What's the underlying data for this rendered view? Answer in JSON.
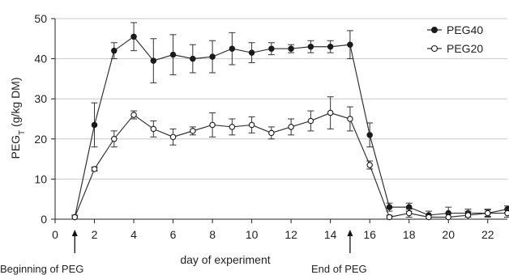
{
  "chart_data": {
    "type": "line",
    "xlabel": "day of experiment",
    "ylabel_main": "PEG",
    "ylabel_sub": "T",
    "ylabel_rest": " (g/kg DM)",
    "xlim": [
      0,
      23
    ],
    "ylim": [
      0,
      50
    ],
    "xticks": [
      "0",
      "2",
      "4",
      "6",
      "8",
      "10",
      "12",
      "14",
      "16",
      "18",
      "20",
      "22"
    ],
    "yticks": [
      "0",
      "10",
      "20",
      "30",
      "40",
      "50"
    ],
    "grid": "horizontal",
    "legend_position": "top-right",
    "series": [
      {
        "name": "PEG40",
        "marker": "filled-circle",
        "points": [
          {
            "x": 1,
            "y": 0.5,
            "err": 0.5
          },
          {
            "x": 2,
            "y": 23.5,
            "err": 5.5
          },
          {
            "x": 3,
            "y": 42,
            "err": 2
          },
          {
            "x": 4,
            "y": 45.5,
            "err": 3.5
          },
          {
            "x": 5,
            "y": 39.5,
            "err": 5.5
          },
          {
            "x": 6,
            "y": 41,
            "err": 5
          },
          {
            "x": 7,
            "y": 40,
            "err": 3.5
          },
          {
            "x": 8,
            "y": 40.5,
            "err": 4
          },
          {
            "x": 9,
            "y": 42.5,
            "err": 4
          },
          {
            "x": 10,
            "y": 41.5,
            "err": 2.5
          },
          {
            "x": 11,
            "y": 42.5,
            "err": 1.5
          },
          {
            "x": 12,
            "y": 42.5,
            "err": 1
          },
          {
            "x": 13,
            "y": 43,
            "err": 1.5
          },
          {
            "x": 14,
            "y": 43,
            "err": 1.5
          },
          {
            "x": 15,
            "y": 43.5,
            "err": 3.5
          },
          {
            "x": 16,
            "y": 21,
            "err": 3
          },
          {
            "x": 17,
            "y": 3,
            "err": 1
          },
          {
            "x": 18,
            "y": 3,
            "err": 1
          },
          {
            "x": 19,
            "y": 1,
            "err": 1
          },
          {
            "x": 20,
            "y": 1.5,
            "err": 1.5
          },
          {
            "x": 21,
            "y": 1.5,
            "err": 1
          },
          {
            "x": 22,
            "y": 1.5,
            "err": 0.8
          },
          {
            "x": 23,
            "y": 2.5,
            "err": 0.8
          }
        ]
      },
      {
        "name": "PEG20",
        "marker": "open-circle",
        "points": [
          {
            "x": 1,
            "y": 0.5,
            "err": 0.5
          },
          {
            "x": 2,
            "y": 12.5,
            "err": 0.5
          },
          {
            "x": 3,
            "y": 20,
            "err": 2
          },
          {
            "x": 4,
            "y": 26,
            "err": 1
          },
          {
            "x": 5,
            "y": 22.5,
            "err": 2
          },
          {
            "x": 6,
            "y": 20.5,
            "err": 2
          },
          {
            "x": 7,
            "y": 22,
            "err": 1
          },
          {
            "x": 8,
            "y": 23.5,
            "err": 3
          },
          {
            "x": 9,
            "y": 23,
            "err": 2
          },
          {
            "x": 10,
            "y": 23.5,
            "err": 2
          },
          {
            "x": 11,
            "y": 21.5,
            "err": 1.5
          },
          {
            "x": 12,
            "y": 23,
            "err": 2
          },
          {
            "x": 13,
            "y": 24.5,
            "err": 2.5
          },
          {
            "x": 14,
            "y": 26.5,
            "err": 4
          },
          {
            "x": 15,
            "y": 25,
            "err": 3
          },
          {
            "x": 16,
            "y": 13.5,
            "err": 1
          },
          {
            "x": 17,
            "y": 0.5,
            "err": 0.5
          },
          {
            "x": 18,
            "y": 1.5,
            "err": 1
          },
          {
            "x": 19,
            "y": 0.5,
            "err": 0.5
          },
          {
            "x": 20,
            "y": 0.5,
            "err": 1
          },
          {
            "x": 21,
            "y": 1,
            "err": 1
          },
          {
            "x": 22,
            "y": 1.5,
            "err": 1
          },
          {
            "x": 23,
            "y": 1.5,
            "err": 1
          }
        ]
      }
    ],
    "annotations": [
      {
        "label": "Beginning  of PEG",
        "x": 1
      },
      {
        "label": "End  of PEG",
        "x": 15
      }
    ]
  },
  "colors": {
    "line": "#333333",
    "marker": "#1a1a1a",
    "grid": "#c8c8c8",
    "axis": "#222222"
  }
}
